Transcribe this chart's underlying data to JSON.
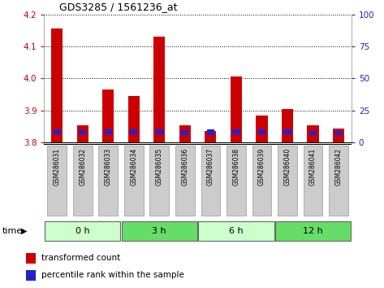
{
  "title": "GDS3285 / 1561236_at",
  "samples": [
    "GSM286031",
    "GSM286032",
    "GSM286033",
    "GSM286034",
    "GSM286035",
    "GSM286036",
    "GSM286037",
    "GSM286038",
    "GSM286039",
    "GSM286040",
    "GSM286041",
    "GSM286042"
  ],
  "red_values": [
    4.155,
    3.855,
    3.965,
    3.945,
    4.13,
    3.855,
    3.835,
    4.005,
    3.885,
    3.905,
    3.855,
    3.845
  ],
  "blue_bottom": [
    3.825,
    3.825,
    3.827,
    3.827,
    3.826,
    3.824,
    3.824,
    3.826,
    3.826,
    3.826,
    3.823,
    3.823
  ],
  "blue_top": [
    3.84,
    3.838,
    3.841,
    3.841,
    3.84,
    3.838,
    3.84,
    3.84,
    3.84,
    3.84,
    3.836,
    3.836
  ],
  "ylim_left": [
    3.8,
    4.2
  ],
  "ylim_right": [
    0,
    100
  ],
  "yticks_left": [
    3.8,
    3.9,
    4.0,
    4.1,
    4.2
  ],
  "yticks_right": [
    0,
    25,
    50,
    75,
    100
  ],
  "groups": [
    {
      "label": "0 h",
      "start": 0,
      "end": 3,
      "color": "#ccffcc"
    },
    {
      "label": "3 h",
      "start": 3,
      "end": 6,
      "color": "#66dd66"
    },
    {
      "label": "6 h",
      "start": 6,
      "end": 9,
      "color": "#ccffcc"
    },
    {
      "label": "12 h",
      "start": 9,
      "end": 12,
      "color": "#66dd66"
    }
  ],
  "bar_color_red": "#cc0000",
  "bar_color_blue": "#2222cc",
  "bar_width": 0.45,
  "base": 3.8,
  "grid_color": "#000000",
  "tick_color_left": "#cc0000",
  "tick_color_right": "#2222cc",
  "legend_red": "transformed count",
  "legend_blue": "percentile rank within the sample",
  "bg_color_plot": "#ffffff",
  "bg_color_fig": "#ffffff",
  "xticklabel_bg": "#cccccc"
}
